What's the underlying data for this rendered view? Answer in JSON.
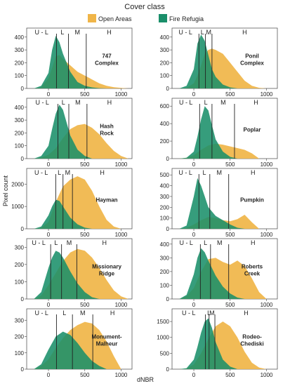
{
  "legend": {
    "title": "Cover class",
    "items": [
      {
        "label": "Open Areas",
        "color": "#f0b548"
      },
      {
        "label": "Fire Refugia",
        "color": "#1a8f6a"
      }
    ]
  },
  "ylabel": "Pixel count",
  "xlabel": "dNBR",
  "severity_labels": [
    "U - L",
    "L",
    "M",
    "H"
  ],
  "chart_data": [
    {
      "type": "area",
      "title": "747\nComplex",
      "xticks": [
        0,
        500,
        1000
      ],
      "yticks": [
        0,
        100,
        200,
        300,
        400
      ],
      "ylim": [
        0,
        470
      ],
      "xlim": [
        -300,
        1150
      ],
      "thresholds": [
        110,
        275,
        520
      ],
      "series": [
        {
          "name": "Open Areas",
          "x": [
            -200,
            -100,
            0,
            50,
            100,
            150,
            200,
            300,
            400,
            500,
            600,
            700,
            800,
            900,
            1000,
            1100
          ],
          "y": [
            0,
            10,
            80,
            160,
            250,
            260,
            230,
            180,
            130,
            100,
            70,
            40,
            20,
            10,
            4,
            0
          ]
        },
        {
          "name": "Fire Refugia",
          "x": [
            -200,
            -100,
            0,
            50,
            100,
            150,
            200,
            300,
            400,
            500,
            600,
            700,
            800
          ],
          "y": [
            0,
            20,
            120,
            300,
            410,
            360,
            270,
            130,
            50,
            20,
            8,
            2,
            0
          ]
        }
      ]
    },
    {
      "type": "area",
      "title": "Ponil\nComplex",
      "xticks": [
        0,
        500,
        1000
      ],
      "yticks": [
        0,
        100,
        200,
        300,
        400
      ],
      "ylim": [
        0,
        470
      ],
      "xlim": [
        -300,
        1150
      ],
      "thresholds": [
        70,
        160,
        250
      ],
      "series": [
        {
          "name": "Open Areas",
          "x": [
            -200,
            -100,
            0,
            50,
            100,
            150,
            200,
            250,
            300,
            400,
            500,
            600,
            700,
            800,
            900,
            1000
          ],
          "y": [
            0,
            5,
            40,
            100,
            180,
            270,
            300,
            310,
            300,
            270,
            200,
            130,
            60,
            20,
            5,
            0
          ]
        },
        {
          "name": "Fire Refugia",
          "x": [
            -200,
            -100,
            0,
            50,
            100,
            150,
            200,
            250,
            300,
            400,
            500,
            600
          ],
          "y": [
            0,
            20,
            150,
            350,
            420,
            370,
            260,
            150,
            90,
            30,
            8,
            0
          ]
        }
      ]
    },
    {
      "type": "area",
      "title": "Hash\nRock",
      "xticks": [
        0,
        500,
        1000
      ],
      "yticks": [
        0,
        100,
        200,
        300,
        400
      ],
      "ylim": [
        0,
        470
      ],
      "xlim": [
        -300,
        1150
      ],
      "thresholds": [
        130,
        280,
        530
      ],
      "series": [
        {
          "name": "Open Areas",
          "x": [
            -200,
            -100,
            0,
            100,
            200,
            300,
            400,
            500,
            600,
            700,
            800,
            900,
            1000,
            1100
          ],
          "y": [
            0,
            10,
            30,
            80,
            160,
            230,
            260,
            270,
            240,
            190,
            120,
            60,
            20,
            0
          ]
        },
        {
          "name": "Fire Refugia",
          "x": [
            -200,
            -100,
            0,
            50,
            100,
            150,
            200,
            250,
            300,
            400,
            500,
            600
          ],
          "y": [
            0,
            20,
            100,
            230,
            350,
            420,
            380,
            280,
            180,
            70,
            20,
            0
          ]
        }
      ]
    },
    {
      "type": "area",
      "title": "Poplar",
      "xticks": [
        0,
        500,
        1000
      ],
      "yticks": [
        0,
        200,
        400,
        600
      ],
      "ylim": [
        0,
        690
      ],
      "xlim": [
        -300,
        1150
      ],
      "thresholds": [
        80,
        250,
        560
      ],
      "series": [
        {
          "name": "Open Areas",
          "x": [
            -200,
            -100,
            0,
            100,
            200,
            300,
            400,
            500,
            600,
            700,
            800,
            900
          ],
          "y": [
            0,
            10,
            40,
            100,
            150,
            170,
            160,
            140,
            120,
            100,
            60,
            0
          ]
        },
        {
          "name": "Fire Refugia",
          "x": [
            -200,
            -100,
            0,
            50,
            100,
            150,
            200,
            250,
            300,
            400,
            500,
            600
          ],
          "y": [
            0,
            10,
            80,
            250,
            450,
            600,
            550,
            380,
            220,
            80,
            20,
            0
          ]
        }
      ]
    },
    {
      "type": "area",
      "title": "Hayman",
      "xticks": [
        0,
        500,
        1000
      ],
      "yticks": [
        0,
        1000,
        2000
      ],
      "ylim": [
        0,
        2700
      ],
      "xlim": [
        -300,
        1150
      ],
      "thresholds": [
        100,
        200,
        330
      ],
      "series": [
        {
          "name": "Open Areas",
          "x": [
            -200,
            -100,
            0,
            100,
            200,
            300,
            400,
            500,
            600,
            700,
            800,
            900,
            1000
          ],
          "y": [
            0,
            50,
            300,
            1200,
            1900,
            2200,
            2350,
            2200,
            1700,
            1000,
            400,
            100,
            0
          ]
        },
        {
          "name": "Fire Refugia",
          "x": [
            -200,
            -100,
            0,
            50,
            100,
            150,
            200,
            300,
            400,
            500,
            600
          ],
          "y": [
            0,
            100,
            600,
            1000,
            1300,
            1250,
            1000,
            500,
            200,
            50,
            0
          ]
        }
      ]
    },
    {
      "type": "area",
      "title": "Pumpkin",
      "xticks": [
        0,
        500,
        1000
      ],
      "yticks": [
        0,
        100,
        200,
        300,
        400,
        500
      ],
      "ylim": [
        0,
        560
      ],
      "xlim": [
        -300,
        1150
      ],
      "thresholds": [
        70,
        220,
        480
      ],
      "series": [
        {
          "name": "Open Areas",
          "x": [
            -200,
            -100,
            0,
            100,
            200,
            300,
            400,
            500,
            600,
            700,
            800,
            900
          ],
          "y": [
            0,
            10,
            40,
            80,
            110,
            100,
            80,
            70,
            90,
            130,
            60,
            0
          ]
        },
        {
          "name": "Fire Refugia",
          "x": [
            -200,
            -100,
            0,
            50,
            100,
            150,
            200,
            300,
            400,
            500,
            600,
            700
          ],
          "y": [
            0,
            30,
            300,
            470,
            400,
            300,
            200,
            120,
            80,
            40,
            10,
            0
          ]
        }
      ]
    },
    {
      "type": "area",
      "title": "Missionary\nRidge",
      "xticks": [
        0,
        500,
        1000
      ],
      "yticks": [
        0,
        100,
        200,
        300
      ],
      "ylim": [
        0,
        350
      ],
      "xlim": [
        -300,
        1150
      ],
      "thresholds": [
        30,
        180,
        390
      ],
      "series": [
        {
          "name": "Open Areas",
          "x": [
            -200,
            -100,
            0,
            100,
            200,
            300,
            400,
            500,
            600,
            700,
            800,
            900,
            1000,
            1100
          ],
          "y": [
            0,
            20,
            80,
            150,
            220,
            270,
            290,
            280,
            240,
            180,
            110,
            50,
            15,
            0
          ]
        },
        {
          "name": "Fire Refugia",
          "x": [
            -200,
            -100,
            0,
            50,
            100,
            150,
            200,
            300,
            400,
            500,
            600,
            700
          ],
          "y": [
            0,
            40,
            180,
            240,
            280,
            270,
            240,
            160,
            90,
            40,
            10,
            0
          ]
        }
      ]
    },
    {
      "type": "area",
      "title": "Roberts\nCreek",
      "xticks": [
        0,
        500,
        1000
      ],
      "yticks": [
        0,
        100,
        200,
        300,
        400
      ],
      "ylim": [
        0,
        440
      ],
      "xlim": [
        -300,
        1150
      ],
      "thresholds": [
        90,
        230,
        480
      ],
      "series": [
        {
          "name": "Open Areas",
          "x": [
            -200,
            -100,
            0,
            100,
            200,
            300,
            400,
            500,
            600,
            700,
            800,
            900,
            1000
          ],
          "y": [
            0,
            20,
            80,
            200,
            290,
            300,
            270,
            250,
            280,
            240,
            150,
            50,
            0
          ]
        },
        {
          "name": "Fire Refugia",
          "x": [
            -200,
            -100,
            0,
            50,
            100,
            150,
            200,
            300,
            400,
            500,
            600,
            700
          ],
          "y": [
            0,
            30,
            180,
            300,
            370,
            340,
            280,
            170,
            90,
            40,
            10,
            0
          ]
        }
      ]
    },
    {
      "type": "area",
      "title": "Monument-\nMalheur",
      "xticks": [
        0,
        500,
        1000
      ],
      "yticks": [
        0,
        100,
        200,
        300
      ],
      "ylim": [
        0,
        370
      ],
      "xlim": [
        -300,
        1150
      ],
      "thresholds": [
        110,
        330,
        610
      ],
      "series": [
        {
          "name": "Open Areas",
          "x": [
            -200,
            -100,
            0,
            100,
            200,
            300,
            400,
            500,
            600,
            700,
            800,
            900,
            1000
          ],
          "y": [
            0,
            20,
            60,
            130,
            190,
            240,
            270,
            290,
            280,
            240,
            170,
            80,
            0
          ]
        },
        {
          "name": "Fire Refugia",
          "x": [
            -200,
            -100,
            0,
            100,
            200,
            300,
            400,
            500,
            600,
            700,
            800
          ],
          "y": [
            0,
            30,
            120,
            200,
            230,
            210,
            160,
            100,
            50,
            20,
            0
          ]
        }
      ]
    },
    {
      "type": "area",
      "title": "Rodeo-\nChediski",
      "xticks": [
        0,
        500,
        1000
      ],
      "yticks": [
        0,
        500,
        1000,
        1500
      ],
      "ylim": [
        0,
        1900
      ],
      "xlim": [
        -300,
        1150
      ],
      "thresholds": [
        160,
        210,
        290
      ],
      "series": [
        {
          "name": "Open Areas",
          "x": [
            -200,
            -100,
            0,
            100,
            200,
            300,
            400,
            500,
            600,
            700,
            800,
            900,
            1000
          ],
          "y": [
            0,
            20,
            150,
            500,
            950,
            1350,
            1500,
            1350,
            1000,
            550,
            200,
            50,
            0
          ]
        },
        {
          "name": "Fire Refugia",
          "x": [
            -200,
            -100,
            0,
            50,
            100,
            150,
            200,
            250,
            300,
            400,
            500,
            600
          ],
          "y": [
            0,
            30,
            300,
            700,
            1150,
            1500,
            1600,
            1300,
            850,
            300,
            80,
            0
          ]
        }
      ]
    }
  ]
}
